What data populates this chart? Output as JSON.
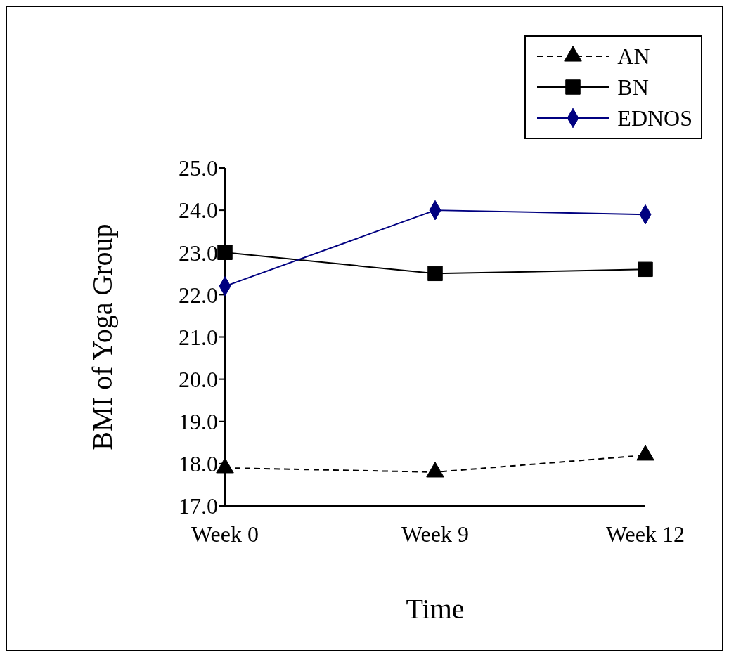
{
  "chart_data": {
    "type": "line",
    "xlabel": "Time",
    "ylabel": "BMI of Yoga Group",
    "categories": [
      "Week 0",
      "Week 9",
      "Week 12"
    ],
    "series": [
      {
        "name": "AN",
        "color": "#000000",
        "values": [
          17.9,
          17.8,
          18.2
        ],
        "marker": "triangle",
        "line_style": "dashed"
      },
      {
        "name": "BN",
        "color": "#000000",
        "values": [
          23.0,
          22.5,
          22.6
        ],
        "marker": "square",
        "line_style": "solid"
      },
      {
        "name": "EDNOS",
        "color": "#000080",
        "values": [
          22.2,
          24.0,
          23.9
        ],
        "marker": "diamond",
        "line_style": "solid"
      }
    ],
    "ylim": [
      17,
      25
    ],
    "yticks": [
      {
        "value": 17,
        "label": "17.0"
      },
      {
        "value": 18,
        "label": "18.0"
      },
      {
        "value": 19,
        "label": "19.0"
      },
      {
        "value": 20,
        "label": "20.0"
      },
      {
        "value": 21,
        "label": "21.0"
      },
      {
        "value": 22,
        "label": "22.0"
      },
      {
        "value": 23,
        "label": "23.0"
      },
      {
        "value": 24,
        "label": "24.0"
      },
      {
        "value": 25,
        "label": "25.0"
      }
    ],
    "grid": false,
    "legend": "top right"
  }
}
